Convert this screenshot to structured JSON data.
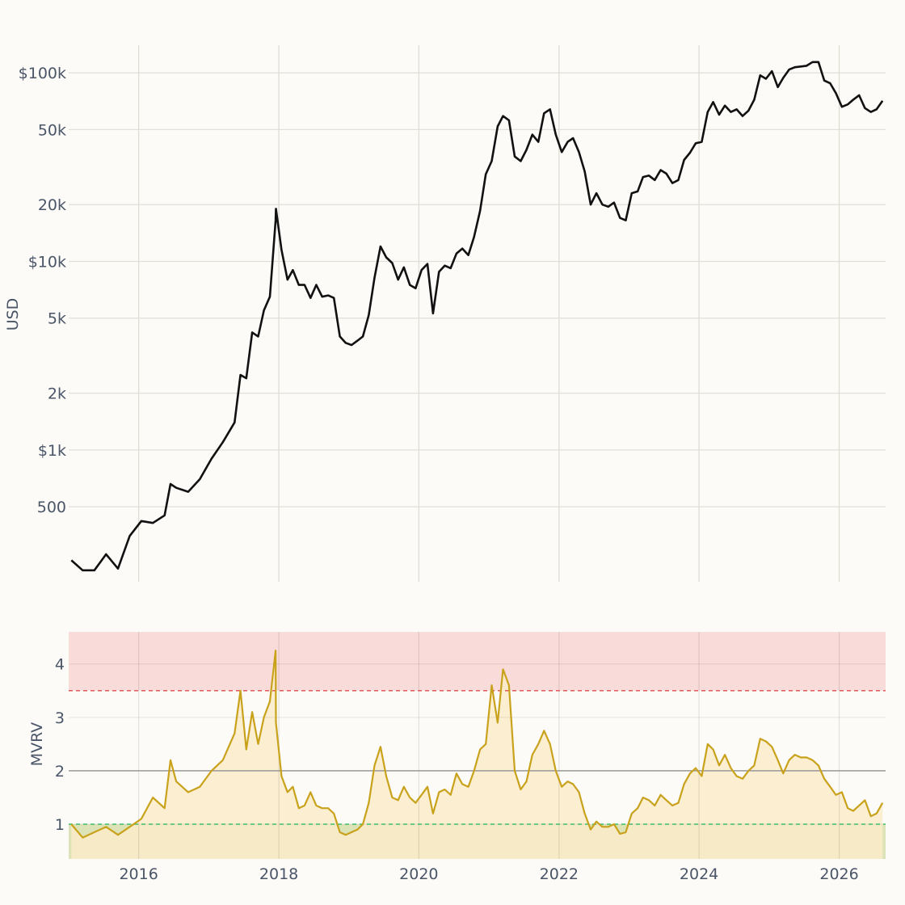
{
  "chart_data": [
    {
      "type": "line",
      "ylabel": "USD",
      "yscale": "log",
      "grid": true,
      "ylim": [
        200,
        140000
      ],
      "yticks": [
        500,
        1000,
        2000,
        5000,
        10000,
        20000,
        50000,
        100000
      ],
      "ytick_labels": [
        "500",
        "$1k",
        "2k",
        "5k",
        "$10k",
        "20k",
        "50k",
        "$100k"
      ],
      "xlim": [
        "2015-01-01",
        "2026-08-31"
      ],
      "xticks": [
        "2016-01-01",
        "2018-01-01",
        "2020-01-01",
        "2022-01-01",
        "2024-01-01",
        "2026-01-01"
      ],
      "series": [
        {
          "color": "#111111",
          "x": [
            "2015-01",
            "2015-03",
            "2015-05",
            "2015-07",
            "2015-09",
            "2015-11",
            "2016-01",
            "2016-03",
            "2016-05",
            "2016-06",
            "2016-07",
            "2016-09",
            "2016-11",
            "2017-01",
            "2017-03",
            "2017-05",
            "2017-06",
            "2017-07",
            "2017-08",
            "2017-09",
            "2017-10",
            "2017-11",
            "2017-12",
            "2017-12-17",
            "2018-01",
            "2018-02",
            "2018-03",
            "2018-04",
            "2018-05",
            "2018-06",
            "2018-07",
            "2018-08",
            "2018-09",
            "2018-10",
            "2018-11",
            "2018-12",
            "2019-01",
            "2019-02",
            "2019-03",
            "2019-04",
            "2019-05",
            "2019-06",
            "2019-07",
            "2019-08",
            "2019-09",
            "2019-10",
            "2019-11",
            "2019-12",
            "2020-01",
            "2020-02",
            "2020-03",
            "2020-04",
            "2020-05",
            "2020-06",
            "2020-07",
            "2020-08",
            "2020-09",
            "2020-10",
            "2020-11",
            "2020-12",
            "2021-01",
            "2021-02",
            "2021-03",
            "2021-04",
            "2021-05",
            "2021-06",
            "2021-07",
            "2021-08",
            "2021-09",
            "2021-10",
            "2021-11",
            "2021-12",
            "2022-01",
            "2022-02",
            "2022-03",
            "2022-04",
            "2022-05",
            "2022-06",
            "2022-07",
            "2022-08",
            "2022-09",
            "2022-10",
            "2022-11",
            "2022-12",
            "2023-01",
            "2023-02",
            "2023-03",
            "2023-04",
            "2023-05",
            "2023-06",
            "2023-07",
            "2023-08",
            "2023-09",
            "2023-10",
            "2023-11",
            "2023-12",
            "2024-01",
            "2024-02",
            "2024-03",
            "2024-04",
            "2024-05",
            "2024-06",
            "2024-07",
            "2024-08",
            "2024-09",
            "2024-10",
            "2024-11",
            "2024-12",
            "2025-01",
            "2025-02",
            "2025-03",
            "2025-04",
            "2025-05",
            "2025-06",
            "2025-07",
            "2025-08",
            "2025-09",
            "2025-10",
            "2025-11",
            "2025-12",
            "2026-01",
            "2026-02",
            "2026-03",
            "2026-04",
            "2026-05",
            "2026-06",
            "2026-07",
            "2026-08"
          ],
          "values": [
            260,
            230,
            230,
            280,
            235,
            350,
            420,
            410,
            450,
            660,
            630,
            600,
            700,
            900,
            1100,
            1400,
            2500,
            2400,
            4200,
            4000,
            5500,
            6500,
            16500,
            19000,
            11500,
            8000,
            9000,
            7500,
            7500,
            6400,
            7500,
            6500,
            6600,
            6400,
            4000,
            3700,
            3600,
            3800,
            4000,
            5200,
            8200,
            12000,
            10500,
            9800,
            8000,
            9300,
            7500,
            7200,
            9000,
            9700,
            5300,
            8800,
            9500,
            9200,
            11000,
            11700,
            10800,
            13500,
            18500,
            29000,
            34000,
            52000,
            59000,
            56000,
            36000,
            34000,
            39000,
            47000,
            43000,
            61000,
            64000,
            47000,
            38000,
            43000,
            45000,
            38000,
            30000,
            20000,
            23000,
            20000,
            19500,
            20500,
            17000,
            16500,
            23000,
            23500,
            28000,
            28500,
            27000,
            30500,
            29200,
            26000,
            27000,
            34500,
            37700,
            42300,
            43000,
            62000,
            70000,
            60000,
            67000,
            62000,
            64000,
            59000,
            63000,
            72000,
            97000,
            93000,
            102000,
            84000,
            94000,
            104000,
            107000,
            108000,
            109000,
            114000,
            114000,
            91000,
            88000,
            78000,
            66000,
            68000,
            72000,
            76000,
            65000,
            62000,
            64000,
            71000
          ]
        }
      ]
    },
    {
      "type": "area",
      "ylabel": "MVRV",
      "grid": true,
      "ylim": [
        0.35,
        4.6
      ],
      "yticks": [
        1,
        2,
        3,
        4
      ],
      "ytick_labels": [
        "1",
        "2",
        "3",
        "4"
      ],
      "xlim": [
        "2015-01-01",
        "2026-08-31"
      ],
      "xticks": [
        "2016-01-01",
        "2018-01-01",
        "2020-01-01",
        "2022-01-01",
        "2024-01-01",
        "2026-01-01"
      ],
      "xtick_labels": [
        "2016",
        "2018",
        "2020",
        "2022",
        "2024",
        "2026"
      ],
      "bands": [
        {
          "from": 3.5,
          "to": 4.6,
          "color": "#f9dbd9"
        },
        {
          "from": 0.35,
          "to": 1.0,
          "color": "#dce3b6"
        }
      ],
      "reference_lines": [
        {
          "y": 3.5,
          "color": "#e05a5a",
          "style": "dashed"
        },
        {
          "y": 2.0,
          "color": "#999999",
          "style": "solid"
        },
        {
          "y": 1.0,
          "color": "#3fbf6a",
          "style": "dashed"
        }
      ],
      "series": [
        {
          "color": "#c9a21c",
          "fill": "#fcebc9",
          "x": [
            "2015-01",
            "2015-03",
            "2015-05",
            "2015-07",
            "2015-09",
            "2015-11",
            "2016-01",
            "2016-03",
            "2016-05",
            "2016-06",
            "2016-07",
            "2016-09",
            "2016-11",
            "2017-01",
            "2017-03",
            "2017-05",
            "2017-06",
            "2017-07",
            "2017-08",
            "2017-09",
            "2017-10",
            "2017-11",
            "2017-12",
            "2017-12-17",
            "2018-01",
            "2018-02",
            "2018-03",
            "2018-04",
            "2018-05",
            "2018-06",
            "2018-07",
            "2018-08",
            "2018-09",
            "2018-10",
            "2018-11",
            "2018-12",
            "2019-01",
            "2019-02",
            "2019-03",
            "2019-04",
            "2019-05",
            "2019-06",
            "2019-07",
            "2019-08",
            "2019-09",
            "2019-10",
            "2019-11",
            "2019-12",
            "2020-01",
            "2020-02",
            "2020-03",
            "2020-04",
            "2020-05",
            "2020-06",
            "2020-07",
            "2020-08",
            "2020-09",
            "2020-10",
            "2020-11",
            "2020-12",
            "2021-01",
            "2021-02",
            "2021-03",
            "2021-04",
            "2021-05",
            "2021-06",
            "2021-07",
            "2021-08",
            "2021-09",
            "2021-10",
            "2021-11",
            "2021-12",
            "2022-01",
            "2022-02",
            "2022-03",
            "2022-04",
            "2022-05",
            "2022-06",
            "2022-07",
            "2022-08",
            "2022-09",
            "2022-10",
            "2022-11",
            "2022-12",
            "2023-01",
            "2023-02",
            "2023-03",
            "2023-04",
            "2023-05",
            "2023-06",
            "2023-07",
            "2023-08",
            "2023-09",
            "2023-10",
            "2023-11",
            "2023-12",
            "2024-01",
            "2024-02",
            "2024-03",
            "2024-04",
            "2024-05",
            "2024-06",
            "2024-07",
            "2024-08",
            "2024-09",
            "2024-10",
            "2024-11",
            "2024-12",
            "2025-01",
            "2025-02",
            "2025-03",
            "2025-04",
            "2025-05",
            "2025-06",
            "2025-07",
            "2025-08",
            "2025-09",
            "2025-10",
            "2025-11",
            "2025-12",
            "2026-01",
            "2026-02",
            "2026-03",
            "2026-04",
            "2026-05",
            "2026-06",
            "2026-07",
            "2026-08"
          ],
          "values": [
            1.0,
            0.75,
            0.85,
            0.95,
            0.8,
            0.95,
            1.1,
            1.5,
            1.3,
            2.2,
            1.8,
            1.6,
            1.7,
            2.0,
            2.2,
            2.7,
            3.5,
            2.4,
            3.1,
            2.5,
            3.0,
            3.3,
            4.25,
            2.9,
            1.9,
            1.6,
            1.7,
            1.3,
            1.35,
            1.6,
            1.35,
            1.3,
            1.3,
            1.2,
            0.85,
            0.8,
            0.85,
            0.9,
            1.0,
            1.4,
            2.1,
            2.45,
            1.9,
            1.5,
            1.45,
            1.7,
            1.5,
            1.4,
            1.55,
            1.7,
            1.2,
            1.6,
            1.65,
            1.55,
            1.95,
            1.75,
            1.7,
            2.0,
            2.4,
            2.5,
            3.6,
            2.9,
            3.9,
            3.6,
            2.0,
            1.65,
            1.8,
            2.3,
            2.5,
            2.75,
            2.5,
            2.0,
            1.7,
            1.8,
            1.75,
            1.6,
            1.2,
            0.9,
            1.05,
            0.95,
            0.95,
            1.0,
            0.82,
            0.85,
            1.2,
            1.3,
            1.5,
            1.45,
            1.35,
            1.55,
            1.45,
            1.35,
            1.4,
            1.75,
            1.95,
            2.05,
            1.9,
            2.5,
            2.4,
            2.1,
            2.3,
            2.05,
            1.9,
            1.85,
            2.0,
            2.1,
            2.6,
            2.55,
            2.45,
            2.2,
            1.95,
            2.2,
            2.3,
            2.25,
            2.25,
            2.2,
            2.1,
            1.85,
            1.7,
            1.55,
            1.6,
            1.3,
            1.25,
            1.35,
            1.45,
            1.15,
            1.2,
            1.4
          ]
        }
      ]
    }
  ]
}
